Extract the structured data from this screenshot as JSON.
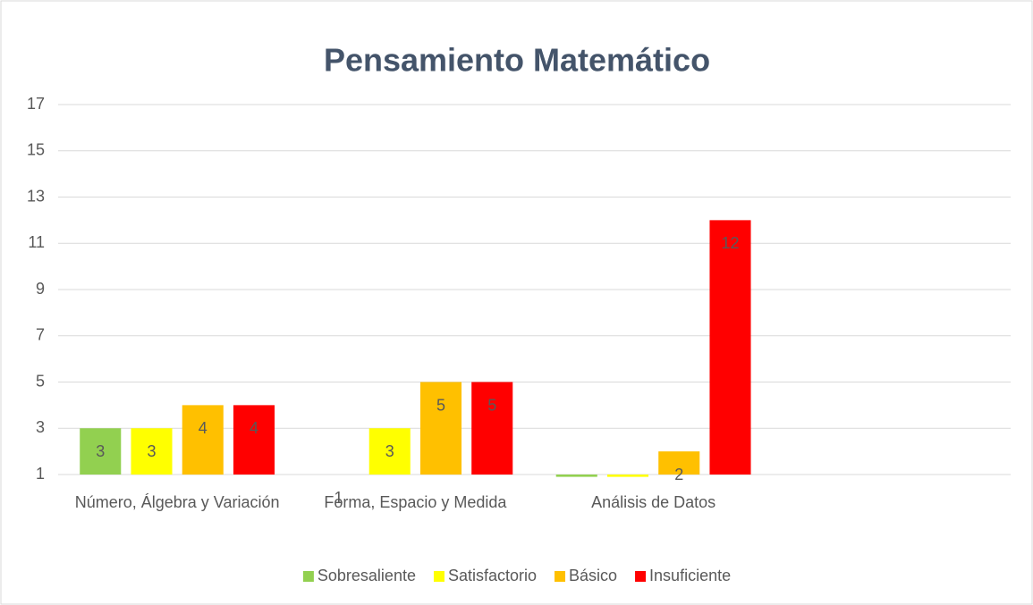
{
  "chart_data": {
    "type": "bar",
    "title": "Pensamiento Matemático",
    "categories": [
      "Número, Álgebra y Variación",
      "Forma, Espacio y Medida",
      "Análisis de Datos",
      null
    ],
    "series": [
      {
        "name": "Sobresaliente",
        "color": "#92d050",
        "values": [
          3,
          1,
          0.9,
          null
        ],
        "value_labels": [
          "3",
          "1",
          null,
          null
        ]
      },
      {
        "name": "Satisfactorio",
        "color": "#ffff00",
        "values": [
          3,
          3,
          0.9,
          null
        ],
        "value_labels": [
          "3",
          "3",
          null,
          null
        ]
      },
      {
        "name": "Básico",
        "color": "#ffc000",
        "values": [
          4,
          5,
          2,
          null
        ],
        "value_labels": [
          "4",
          "5",
          "2",
          null
        ]
      },
      {
        "name": "Insuficiente",
        "color": "#ff0000",
        "values": [
          4,
          5,
          12,
          null
        ],
        "value_labels": [
          "4",
          "5",
          "12",
          null
        ]
      }
    ],
    "ylim": [
      1,
      17
    ],
    "yticks": [
      1,
      3,
      5,
      7,
      9,
      11,
      13,
      15,
      17
    ],
    "grid": true,
    "legend": "bottom"
  }
}
